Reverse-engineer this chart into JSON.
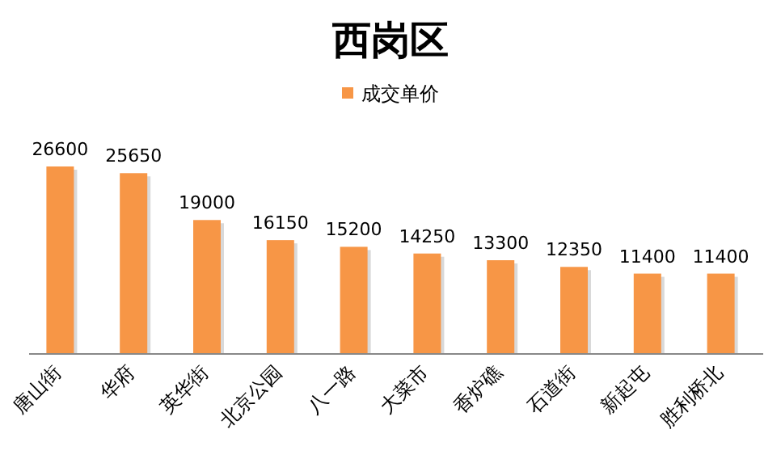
{
  "chart_data": {
    "type": "bar",
    "title": "西岗区",
    "categories": [
      "唐山街",
      "华府",
      "英华街",
      "北京公园",
      "八一路",
      "大菜市",
      "香炉礁",
      "石道街",
      "新起屯",
      "胜利桥北"
    ],
    "series": [
      {
        "name": "成交单价",
        "color": "#f79646",
        "values": [
          26600,
          25650,
          19000,
          16150,
          15200,
          14250,
          13300,
          12350,
          11400,
          11400
        ]
      }
    ],
    "data_labels": true,
    "legend": "top",
    "grid": false
  }
}
